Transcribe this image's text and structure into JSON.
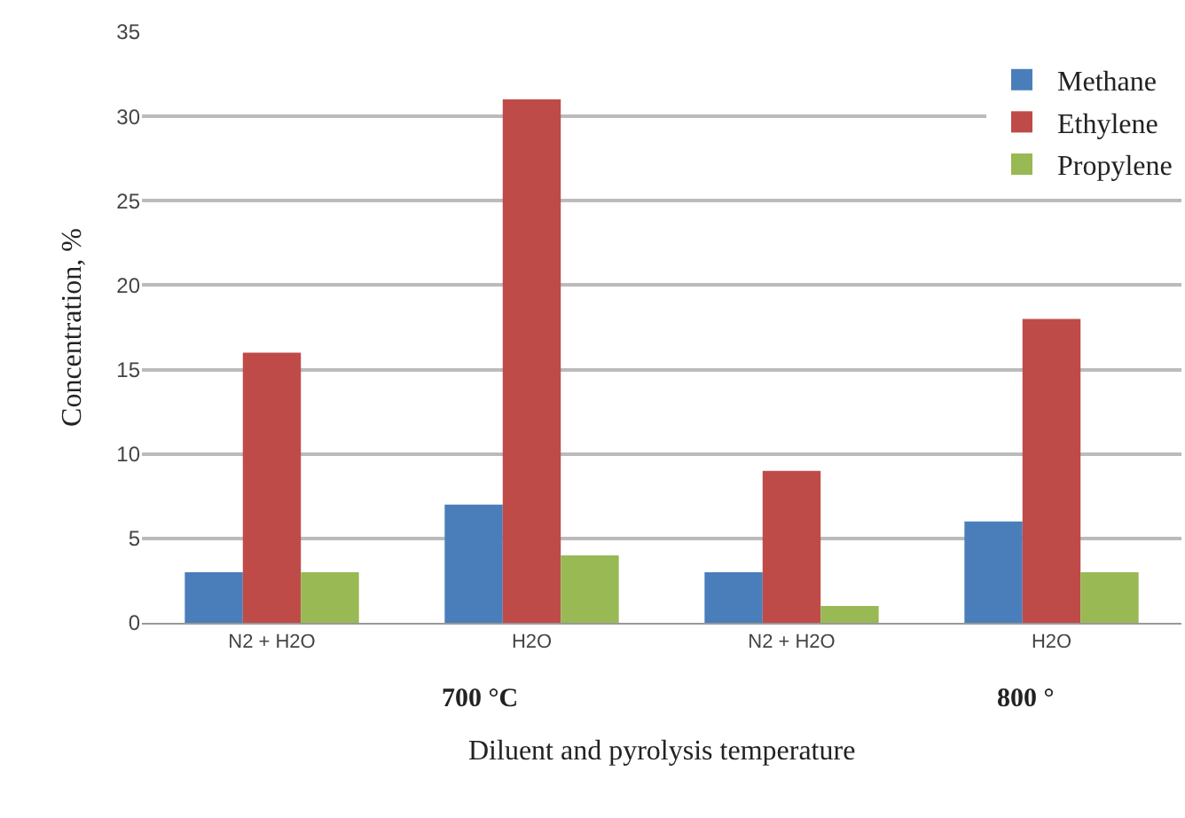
{
  "chart_data": {
    "type": "bar",
    "categories": [
      "N2 + H2O",
      "H2O",
      "N2 + H2O",
      "H2O"
    ],
    "series": [
      {
        "name": "Methane",
        "color": "#4a7ebb",
        "values": [
          3,
          7,
          3,
          6
        ]
      },
      {
        "name": "Ethylene",
        "color": "#be4b48",
        "values": [
          16,
          31,
          9,
          18
        ]
      },
      {
        "name": "Propylene",
        "color": "#98b954",
        "values": [
          3,
          4,
          1,
          3
        ]
      }
    ],
    "ylabel": "Concentration, %",
    "xlabel": "Diluent and pyrolysis temperature",
    "annotations": [
      "700 °C",
      "800 °"
    ],
    "ylim": [
      0,
      35
    ],
    "yticks": [
      0,
      5,
      10,
      15,
      20,
      25,
      30,
      35
    ],
    "grid": "y",
    "legend": "top right"
  }
}
